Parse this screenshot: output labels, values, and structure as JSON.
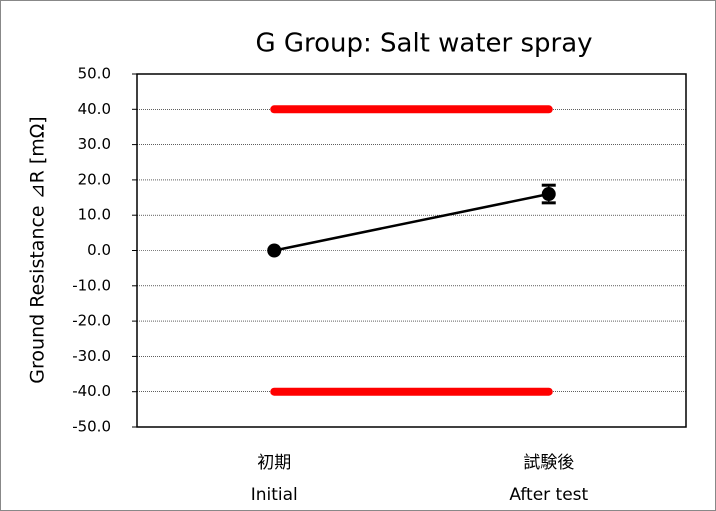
{
  "chart_data": {
    "type": "line",
    "title": "G Group: Salt water spray",
    "ylabel": "Ground Resistance ⊿R [mΩ]",
    "categories": [
      [
        "初期",
        "Initial"
      ],
      [
        "試験後",
        "After test"
      ]
    ],
    "values": [
      0,
      16
    ],
    "errors": [
      0,
      2.5
    ],
    "color": "#000000",
    "limit_lines": {
      "values": [
        40,
        -40
      ],
      "color": "#ff0000"
    },
    "ylim": [
      -50,
      50
    ],
    "yticks": [
      {
        "value": -50,
        "label": "-50.0"
      },
      {
        "value": -40,
        "label": "-40.0"
      },
      {
        "value": -30,
        "label": "-30.0"
      },
      {
        "value": -20,
        "label": "-20.0"
      },
      {
        "value": -10,
        "label": "-10.0"
      },
      {
        "value": 0,
        "label": "0.0"
      },
      {
        "value": 10,
        "label": "10.0"
      },
      {
        "value": 20,
        "label": "20.0"
      },
      {
        "value": 30,
        "label": "30.0"
      },
      {
        "value": 40,
        "label": "40.0"
      },
      {
        "value": 50,
        "label": "50.0"
      }
    ],
    "grid": true
  }
}
